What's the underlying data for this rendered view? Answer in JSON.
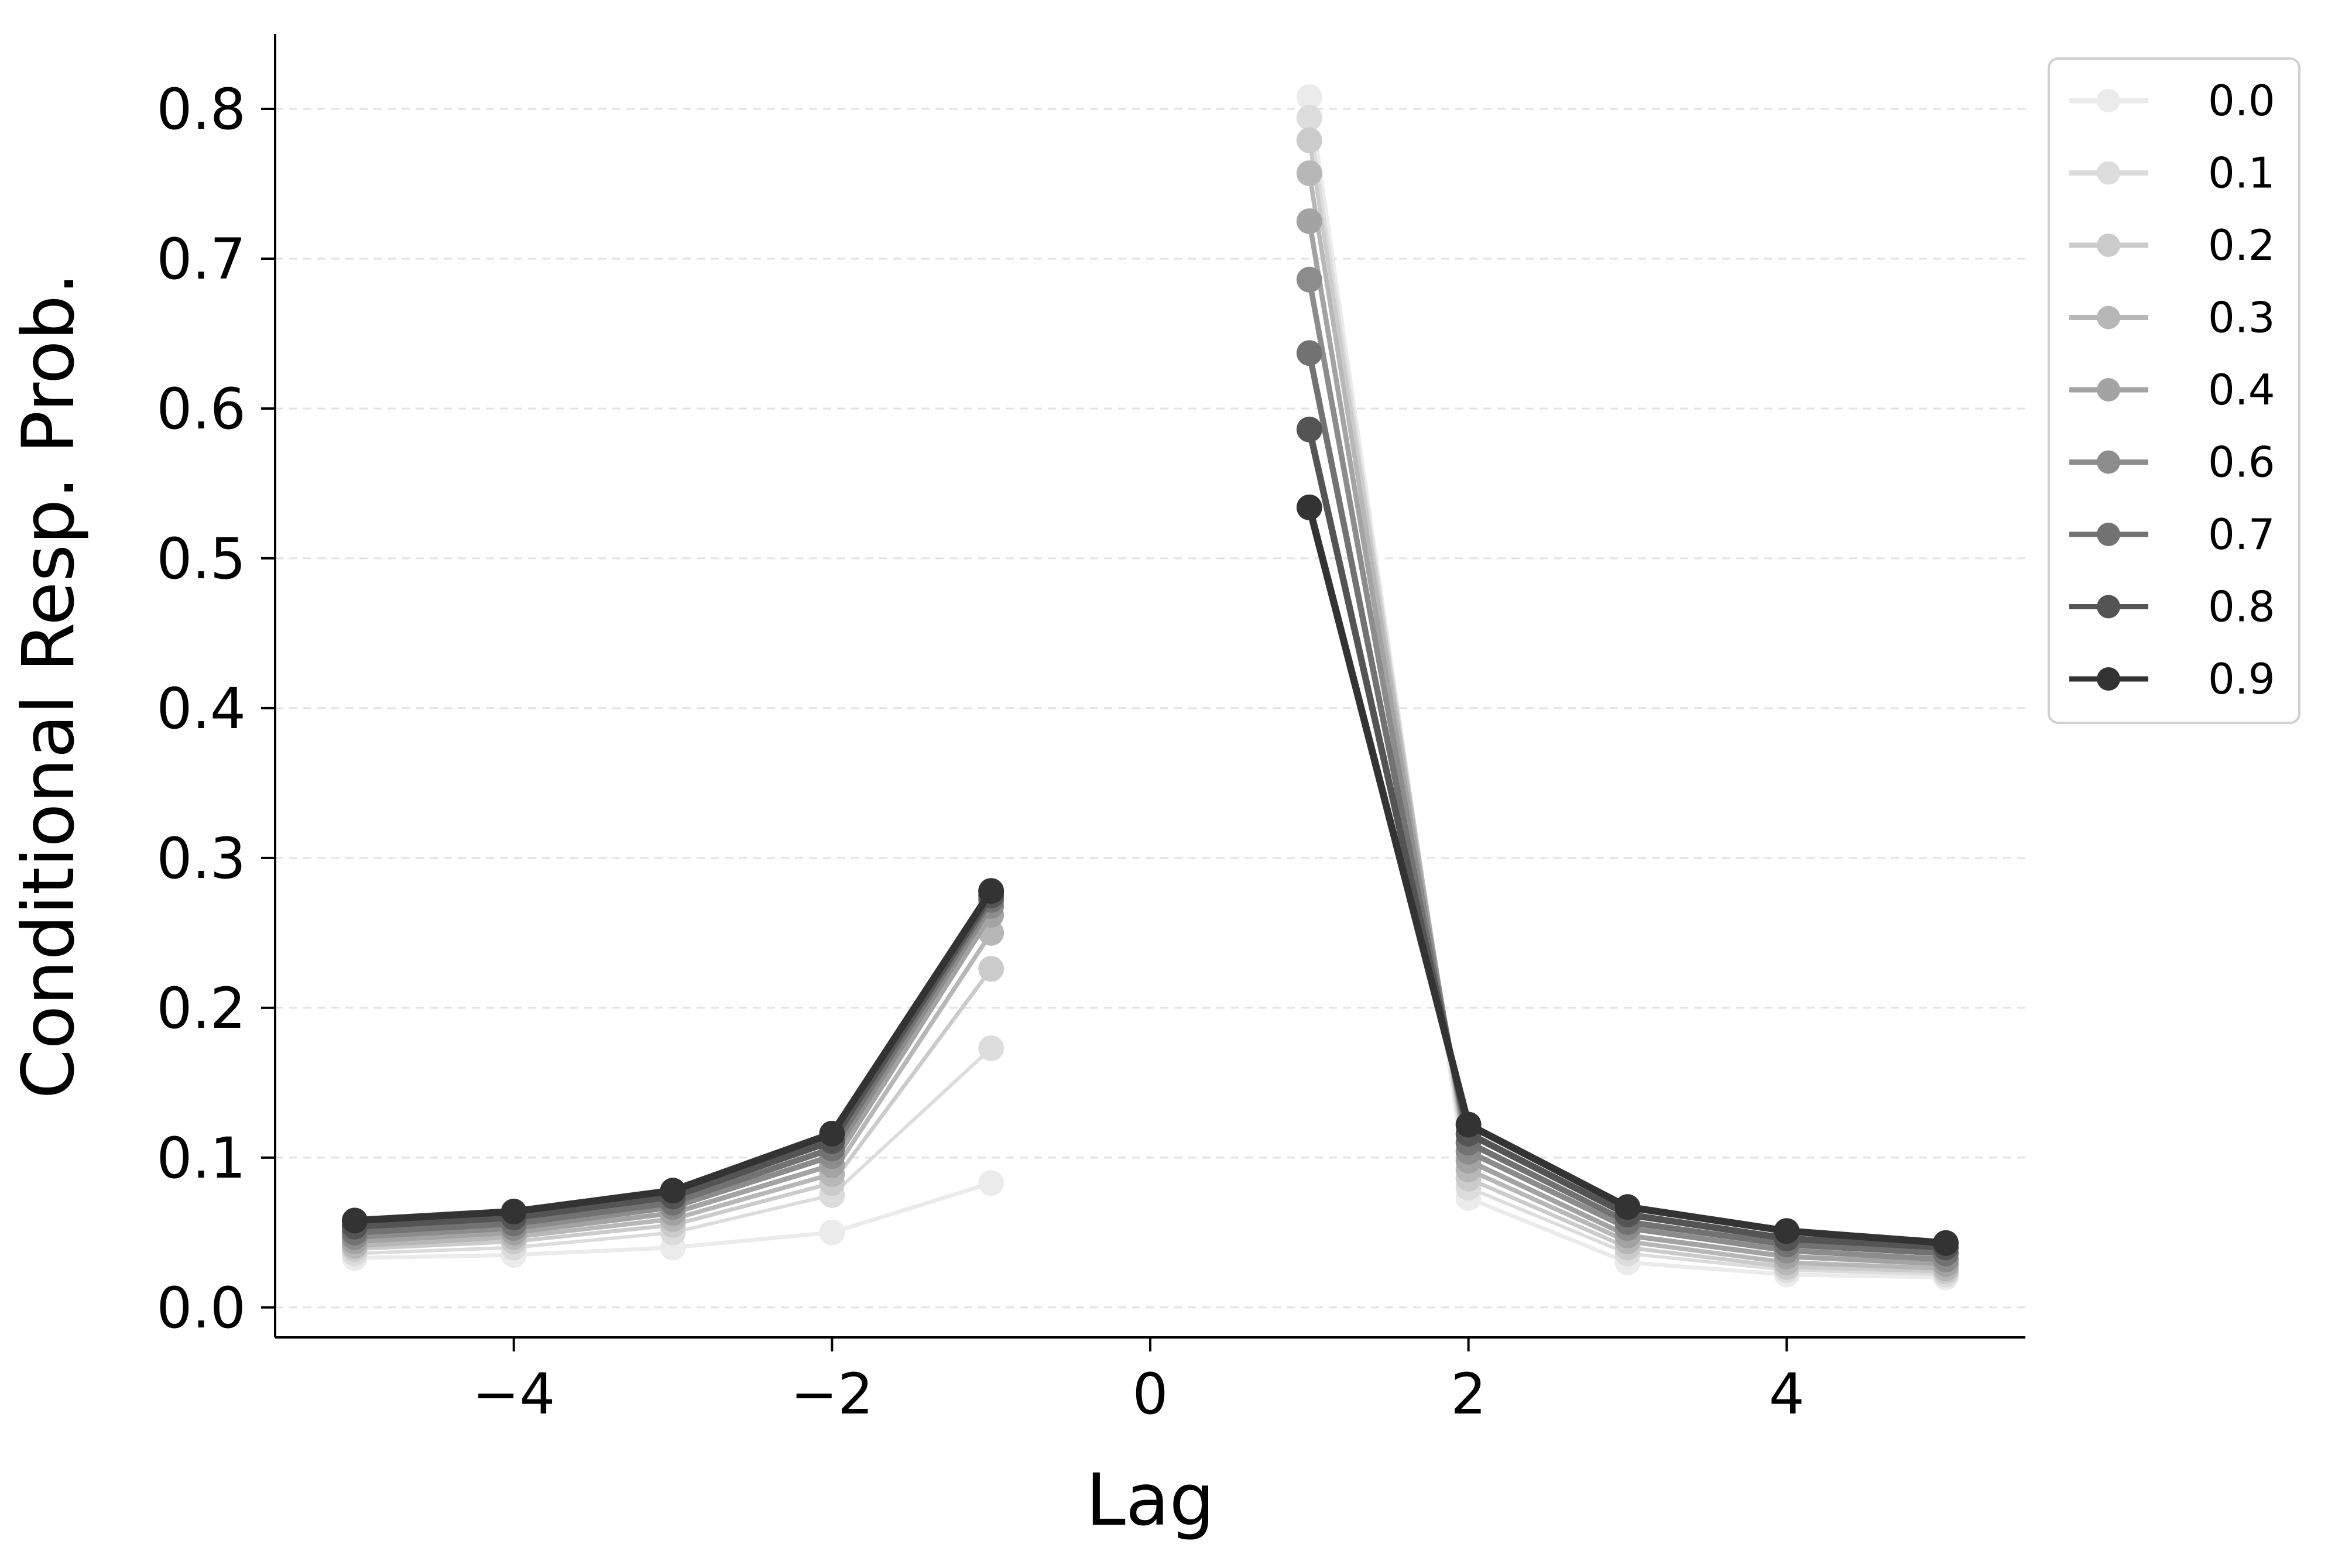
{
  "chart_data": {
    "type": "line",
    "title": "",
    "xlabel": "Lag",
    "ylabel": "Conditional Resp. Prob.",
    "xlim": [
      -5.5,
      5.5
    ],
    "ylim": [
      -0.02,
      0.85
    ],
    "xticks": [
      -4,
      -2,
      0,
      2,
      4
    ],
    "xtick_labels": [
      "−4",
      "−2",
      "0",
      "2",
      "4"
    ],
    "yticks": [
      0.0,
      0.1,
      0.2,
      0.3,
      0.4,
      0.5,
      0.6,
      0.7,
      0.8
    ],
    "ytick_labels": [
      "0.0",
      "0.1",
      "0.2",
      "0.3",
      "0.4",
      "0.5",
      "0.6",
      "0.7",
      "0.8"
    ],
    "grid": "horizontal dashed",
    "legend_position": "outside top-right",
    "x": [
      -5,
      -4,
      -3,
      -2,
      -1,
      1,
      2,
      3,
      4,
      5
    ],
    "series": [
      {
        "name": "0.0",
        "color": "#ebebeb",
        "values": [
          0.033,
          0.035,
          0.04,
          0.05,
          0.083,
          0.808,
          0.073,
          0.03,
          0.022,
          0.02
        ]
      },
      {
        "name": "0.1",
        "color": "#dcdcdc",
        "values": [
          0.036,
          0.04,
          0.05,
          0.075,
          0.173,
          0.794,
          0.08,
          0.036,
          0.025,
          0.022
        ]
      },
      {
        "name": "0.2",
        "color": "#cbcbcb",
        "values": [
          0.039,
          0.044,
          0.055,
          0.083,
          0.226,
          0.779,
          0.086,
          0.04,
          0.027,
          0.024
        ]
      },
      {
        "name": "0.3",
        "color": "#b7b7b7",
        "values": [
          0.041,
          0.047,
          0.059,
          0.089,
          0.25,
          0.757,
          0.092,
          0.044,
          0.03,
          0.026
        ]
      },
      {
        "name": "0.4",
        "color": "#a3a3a3",
        "values": [
          0.044,
          0.05,
          0.063,
          0.095,
          0.262,
          0.725,
          0.098,
          0.048,
          0.034,
          0.029
        ]
      },
      {
        "name": "0.6",
        "color": "#8c8c8c",
        "values": [
          0.047,
          0.053,
          0.067,
          0.101,
          0.268,
          0.686,
          0.104,
          0.053,
          0.038,
          0.032
        ]
      },
      {
        "name": "0.7",
        "color": "#727272",
        "values": [
          0.05,
          0.056,
          0.07,
          0.106,
          0.272,
          0.637,
          0.11,
          0.057,
          0.042,
          0.036
        ]
      },
      {
        "name": "0.8",
        "color": "#545454",
        "values": [
          0.054,
          0.06,
          0.074,
          0.111,
          0.275,
          0.586,
          0.116,
          0.062,
          0.046,
          0.04
        ]
      },
      {
        "name": "0.9",
        "color": "#333333",
        "values": [
          0.058,
          0.064,
          0.078,
          0.116,
          0.278,
          0.534,
          0.122,
          0.067,
          0.051,
          0.043
        ]
      }
    ]
  }
}
